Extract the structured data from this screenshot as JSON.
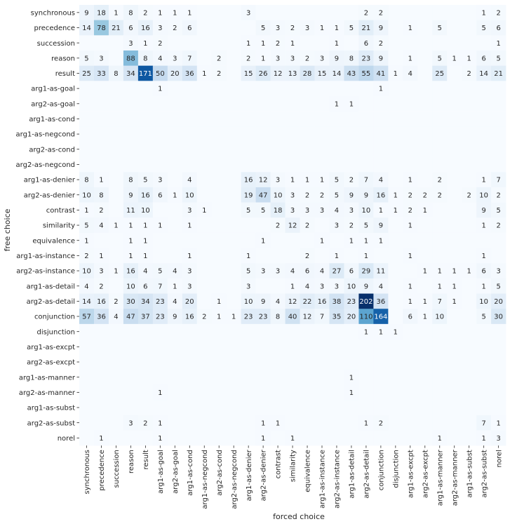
{
  "chart_data": {
    "type": "heatmap",
    "xlabel": "forced choice",
    "ylabel": "free choice",
    "colormap": "Blues",
    "color_low": "#f7fbff",
    "color_high": "#08306b",
    "value_range": [
      0,
      202
    ],
    "colorbar": false,
    "x_categories": [
      "synchronous",
      "precedence",
      "succession",
      "reason",
      "result",
      "arg1-as-goal",
      "arg2-as-goal",
      "arg1-as-cond",
      "arg1-as-negcond",
      "arg2-as-cond",
      "arg2-as-negcond",
      "arg1-as-denier",
      "arg2-as-denier",
      "contrast",
      "similarity",
      "equivalence",
      "arg1-as-instance",
      "arg2-as-instance",
      "arg1-as-detail",
      "arg2-as-detail",
      "conjunction",
      "disjunction",
      "arg1-as-excpt",
      "arg2-as-excpt",
      "arg1-as-manner",
      "arg2-as-manner",
      "arg1-as-subst",
      "arg2-as-subst",
      "norel"
    ],
    "y_categories": [
      "synchronous",
      "precedence",
      "succession",
      "reason",
      "result",
      "arg1-as-goal",
      "arg2-as-goal",
      "arg1-as-cond",
      "arg1-as-negcond",
      "arg2-as-cond",
      "arg2-as-negcond",
      "arg1-as-denier",
      "arg2-as-denier",
      "contrast",
      "similarity",
      "equivalence",
      "arg1-as-instance",
      "arg2-as-instance",
      "arg1-as-detail",
      "arg2-as-detail",
      "conjunction",
      "disjunction",
      "arg1-as-excpt",
      "arg2-as-excpt",
      "arg1-as-manner",
      "arg2-as-manner",
      "arg1-as-subst",
      "arg2-as-subst",
      "norel"
    ],
    "values": [
      [
        9,
        18,
        1,
        8,
        2,
        1,
        1,
        1,
        0,
        0,
        0,
        3,
        0,
        0,
        0,
        0,
        0,
        0,
        0,
        2,
        2,
        0,
        0,
        0,
        0,
        0,
        0,
        1,
        2
      ],
      [
        14,
        78,
        21,
        6,
        16,
        3,
        2,
        6,
        0,
        0,
        0,
        0,
        5,
        3,
        2,
        3,
        1,
        1,
        5,
        21,
        9,
        0,
        1,
        0,
        5,
        0,
        0,
        5,
        6
      ],
      [
        0,
        0,
        0,
        3,
        1,
        2,
        0,
        0,
        0,
        0,
        0,
        1,
        1,
        2,
        1,
        0,
        0,
        1,
        0,
        6,
        2,
        0,
        0,
        0,
        0,
        0,
        0,
        0,
        1
      ],
      [
        5,
        3,
        0,
        88,
        8,
        4,
        3,
        7,
        0,
        2,
        0,
        2,
        1,
        3,
        3,
        2,
        3,
        9,
        8,
        23,
        9,
        0,
        1,
        0,
        5,
        1,
        1,
        6,
        5
      ],
      [
        25,
        33,
        8,
        34,
        171,
        50,
        20,
        36,
        1,
        2,
        0,
        15,
        26,
        12,
        13,
        28,
        15,
        14,
        43,
        55,
        41,
        1,
        4,
        0,
        25,
        0,
        2,
        14,
        21
      ],
      [
        0,
        0,
        0,
        0,
        0,
        1,
        0,
        0,
        0,
        0,
        0,
        0,
        0,
        0,
        0,
        0,
        0,
        0,
        0,
        0,
        1,
        0,
        0,
        0,
        0,
        0,
        0,
        0,
        0
      ],
      [
        0,
        0,
        0,
        0,
        0,
        0,
        0,
        0,
        0,
        0,
        0,
        0,
        0,
        0,
        0,
        0,
        0,
        1,
        1,
        0,
        0,
        0,
        0,
        0,
        0,
        0,
        0,
        0,
        0
      ],
      [
        0,
        0,
        0,
        0,
        0,
        0,
        0,
        0,
        0,
        0,
        0,
        0,
        0,
        0,
        0,
        0,
        0,
        0,
        0,
        0,
        0,
        0,
        0,
        0,
        0,
        0,
        0,
        0,
        0
      ],
      [
        0,
        0,
        0,
        0,
        0,
        0,
        0,
        0,
        0,
        0,
        0,
        0,
        0,
        0,
        0,
        0,
        0,
        0,
        0,
        0,
        0,
        0,
        0,
        0,
        0,
        0,
        0,
        0,
        0
      ],
      [
        0,
        0,
        0,
        0,
        0,
        0,
        0,
        0,
        0,
        0,
        0,
        0,
        0,
        0,
        0,
        0,
        0,
        0,
        0,
        0,
        0,
        0,
        0,
        0,
        0,
        0,
        0,
        0,
        0
      ],
      [
        0,
        0,
        0,
        0,
        0,
        0,
        0,
        0,
        0,
        0,
        0,
        0,
        0,
        0,
        0,
        0,
        0,
        0,
        0,
        0,
        0,
        0,
        0,
        0,
        0,
        0,
        0,
        0,
        0
      ],
      [
        8,
        1,
        0,
        8,
        5,
        3,
        0,
        4,
        0,
        0,
        0,
        16,
        12,
        3,
        1,
        1,
        1,
        5,
        2,
        7,
        4,
        0,
        1,
        0,
        2,
        0,
        0,
        1,
        7
      ],
      [
        10,
        8,
        0,
        9,
        16,
        6,
        1,
        10,
        0,
        0,
        0,
        19,
        47,
        10,
        3,
        2,
        2,
        5,
        9,
        9,
        16,
        1,
        2,
        2,
        2,
        0,
        2,
        10,
        2
      ],
      [
        1,
        2,
        0,
        11,
        10,
        0,
        0,
        3,
        1,
        0,
        0,
        5,
        5,
        18,
        3,
        3,
        3,
        4,
        3,
        10,
        1,
        1,
        2,
        1,
        0,
        0,
        0,
        9,
        5
      ],
      [
        5,
        4,
        1,
        1,
        1,
        1,
        0,
        1,
        0,
        0,
        0,
        0,
        0,
        2,
        12,
        2,
        0,
        3,
        2,
        5,
        9,
        0,
        1,
        0,
        0,
        0,
        0,
        1,
        2
      ],
      [
        1,
        0,
        0,
        1,
        1,
        0,
        0,
        0,
        0,
        0,
        0,
        0,
        1,
        0,
        0,
        0,
        1,
        0,
        1,
        1,
        1,
        0,
        0,
        0,
        0,
        0,
        0,
        0,
        0
      ],
      [
        2,
        1,
        0,
        1,
        1,
        0,
        0,
        1,
        0,
        0,
        0,
        1,
        0,
        0,
        0,
        2,
        0,
        1,
        0,
        1,
        0,
        0,
        1,
        0,
        0,
        0,
        0,
        1,
        0
      ],
      [
        10,
        3,
        1,
        16,
        4,
        5,
        4,
        3,
        0,
        0,
        0,
        5,
        3,
        3,
        4,
        6,
        4,
        27,
        6,
        29,
        11,
        0,
        0,
        1,
        1,
        1,
        1,
        6,
        3
      ],
      [
        4,
        2,
        0,
        10,
        6,
        7,
        1,
        3,
        0,
        0,
        0,
        3,
        0,
        0,
        1,
        4,
        3,
        3,
        10,
        9,
        4,
        0,
        1,
        0,
        1,
        1,
        0,
        1,
        5
      ],
      [
        14,
        16,
        2,
        30,
        34,
        23,
        4,
        20,
        0,
        1,
        0,
        10,
        9,
        4,
        12,
        22,
        16,
        38,
        23,
        202,
        36,
        0,
        1,
        1,
        7,
        1,
        0,
        10,
        20
      ],
      [
        57,
        36,
        4,
        47,
        37,
        23,
        9,
        16,
        2,
        1,
        1,
        23,
        23,
        8,
        40,
        12,
        7,
        35,
        20,
        110,
        164,
        0,
        6,
        1,
        10,
        0,
        0,
        5,
        30
      ],
      [
        0,
        0,
        0,
        0,
        0,
        0,
        0,
        0,
        0,
        0,
        0,
        0,
        0,
        0,
        0,
        0,
        0,
        0,
        0,
        1,
        1,
        1,
        0,
        0,
        0,
        0,
        0,
        0,
        0
      ],
      [
        0,
        0,
        0,
        0,
        0,
        0,
        0,
        0,
        0,
        0,
        0,
        0,
        0,
        0,
        0,
        0,
        0,
        0,
        0,
        0,
        0,
        0,
        0,
        0,
        0,
        0,
        0,
        0,
        0
      ],
      [
        0,
        0,
        0,
        0,
        0,
        0,
        0,
        0,
        0,
        0,
        0,
        0,
        0,
        0,
        0,
        0,
        0,
        0,
        0,
        0,
        0,
        0,
        0,
        0,
        0,
        0,
        0,
        0,
        0
      ],
      [
        0,
        0,
        0,
        0,
        0,
        0,
        0,
        0,
        0,
        0,
        0,
        0,
        0,
        0,
        0,
        0,
        0,
        0,
        1,
        0,
        0,
        0,
        0,
        0,
        0,
        0,
        0,
        0,
        0
      ],
      [
        0,
        0,
        0,
        0,
        0,
        1,
        0,
        0,
        0,
        0,
        0,
        0,
        0,
        0,
        0,
        0,
        0,
        0,
        1,
        0,
        0,
        0,
        0,
        0,
        0,
        0,
        0,
        0,
        0
      ],
      [
        0,
        0,
        0,
        0,
        0,
        0,
        0,
        0,
        0,
        0,
        0,
        0,
        0,
        0,
        0,
        0,
        0,
        0,
        0,
        0,
        0,
        0,
        0,
        0,
        0,
        0,
        0,
        0,
        0
      ],
      [
        0,
        0,
        0,
        3,
        2,
        1,
        0,
        0,
        0,
        0,
        0,
        0,
        1,
        1,
        0,
        0,
        0,
        0,
        0,
        1,
        2,
        0,
        0,
        0,
        0,
        0,
        0,
        7,
        1
      ],
      [
        0,
        1,
        0,
        0,
        0,
        1,
        0,
        0,
        0,
        0,
        0,
        0,
        1,
        0,
        1,
        0,
        0,
        0,
        0,
        0,
        0,
        0,
        0,
        0,
        1,
        0,
        0,
        1,
        3
      ]
    ]
  }
}
